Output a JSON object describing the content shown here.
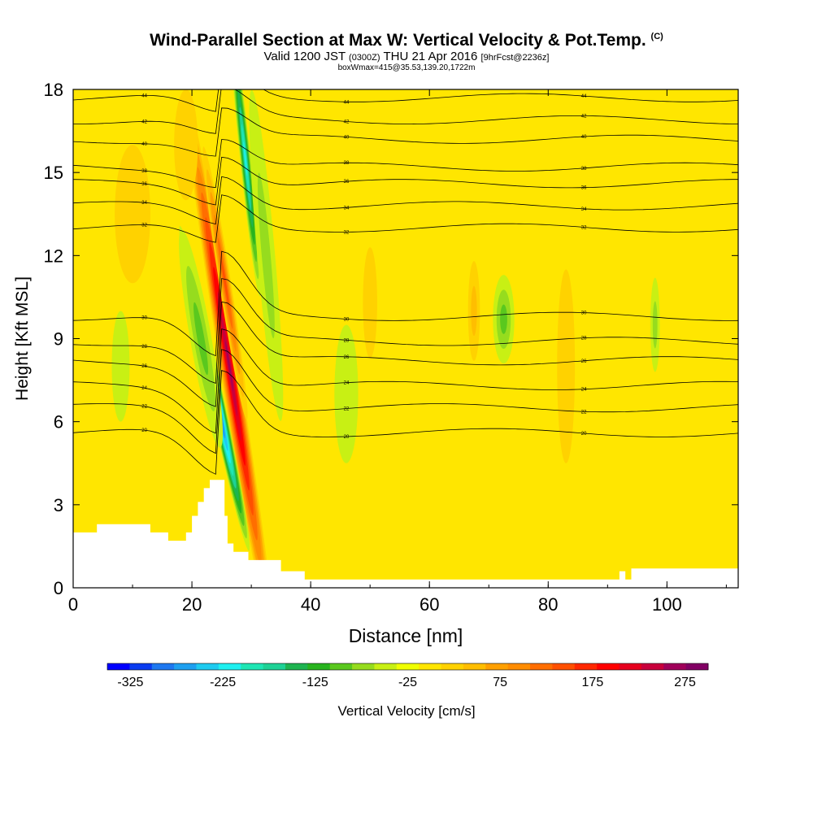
{
  "header": {
    "title": "Wind-Parallel Section at Max W: Vertical Velocity & Pot.Temp.",
    "copyright": "(C)",
    "valid_prefix": "Valid 1200 JST",
    "utc_time": "(0300Z)",
    "valid_date": "THU 21 Apr 2016",
    "forecast": "[9hrFcst@2236z]",
    "subtitle2": "boxWmax=415@35.53,139.20,1722m"
  },
  "chart_data": {
    "type": "heatmap",
    "title": "Wind-Parallel Section at Max W: Vertical Velocity & Pot.Temp.",
    "xlabel": "Distance [nm]",
    "ylabel": "Height [Kft MSL]",
    "xlim": [
      0,
      112
    ],
    "ylim": [
      0,
      18
    ],
    "x_ticks": [
      0,
      20,
      40,
      60,
      80,
      100
    ],
    "y_ticks": [
      0,
      3,
      6,
      9,
      12,
      15,
      18
    ],
    "colorbar": {
      "label": "Vertical Velocity [cm/s]",
      "ticks": [
        -325,
        -225,
        -125,
        -25,
        75,
        175,
        275
      ],
      "min": -350,
      "max": 300,
      "step": 25,
      "colors": [
        "#0000ff",
        "#0a3cf0",
        "#1e78f0",
        "#1ea0f0",
        "#1ecbf0",
        "#1ef0f0",
        "#1ee6b4",
        "#1ed296",
        "#1eb450",
        "#28b41e",
        "#5ac81e",
        "#96dc1e",
        "#c8f014",
        "#f0ff00",
        "#ffe600",
        "#ffd200",
        "#ffbe00",
        "#ffa000",
        "#ff8c00",
        "#ff6e00",
        "#ff5000",
        "#ff2800",
        "#ff0000",
        "#e6001e",
        "#c8003c",
        "#a0005a",
        "#820064"
      ]
    },
    "terrain_kft": [
      [
        0,
        2.0
      ],
      [
        4,
        2.0
      ],
      [
        4,
        2.3
      ],
      [
        13,
        2.3
      ],
      [
        13,
        2.0
      ],
      [
        16,
        2.0
      ],
      [
        16,
        1.7
      ],
      [
        19,
        1.7
      ],
      [
        19,
        2.0
      ],
      [
        20,
        2.0
      ],
      [
        20,
        2.6
      ],
      [
        21,
        2.6
      ],
      [
        21,
        3.1
      ],
      [
        22,
        3.1
      ],
      [
        22,
        3.6
      ],
      [
        23,
        3.6
      ],
      [
        23,
        3.9
      ],
      [
        25.5,
        3.9
      ],
      [
        25.5,
        2.6
      ],
      [
        26,
        2.6
      ],
      [
        26,
        1.6
      ],
      [
        27,
        1.6
      ],
      [
        27,
        1.3
      ],
      [
        29.5,
        1.3
      ],
      [
        29.5,
        1.0
      ],
      [
        35,
        1.0
      ],
      [
        35,
        0.6
      ],
      [
        39,
        0.6
      ],
      [
        39,
        0.3
      ],
      [
        92,
        0.3
      ],
      [
        92,
        0.6
      ],
      [
        93,
        0.6
      ],
      [
        93,
        0.3
      ],
      [
        94,
        0.3
      ],
      [
        94,
        0.7
      ],
      [
        112,
        0.7
      ]
    ],
    "w_features": [
      {
        "x": 26.3,
        "y": 8.0,
        "w": 290,
        "rx": 1.6,
        "ry": 10,
        "angle": -9
      },
      {
        "x": 25.6,
        "y": 11.0,
        "w": 150,
        "rx": 1.0,
        "ry": 5,
        "angle": -9
      },
      {
        "x": 23.8,
        "y": 7.2,
        "w": -330,
        "rx": 1.2,
        "ry": 6,
        "angle": -12
      },
      {
        "x": 29.0,
        "y": 15.5,
        "w": -200,
        "rx": 0.9,
        "ry": 5,
        "angle": -6
      },
      {
        "x": 21.5,
        "y": 9.0,
        "w": -80,
        "rx": 1.8,
        "ry": 4,
        "angle": -10
      },
      {
        "x": 32.5,
        "y": 12.0,
        "w": -60,
        "rx": 1.5,
        "ry": 6,
        "angle": -5
      },
      {
        "x": 72.5,
        "y": 9.7,
        "w": -90,
        "rx": 1.8,
        "ry": 1.6,
        "angle": 0
      },
      {
        "x": 67.5,
        "y": 10.0,
        "w": 60,
        "rx": 1.0,
        "ry": 1.8,
        "angle": 0
      },
      {
        "x": 98.0,
        "y": 9.5,
        "w": -55,
        "rx": 0.8,
        "ry": 1.7,
        "angle": 0
      },
      {
        "x": 83.0,
        "y": 8.0,
        "w": 45,
        "rx": 1.5,
        "ry": 3.5,
        "angle": 0
      },
      {
        "x": 10.0,
        "y": 13.5,
        "w": 35,
        "rx": 3.0,
        "ry": 2.5,
        "angle": 0
      },
      {
        "x": 19.0,
        "y": 16.0,
        "w": 45,
        "rx": 2.0,
        "ry": 2.0,
        "angle": 0
      },
      {
        "x": 50.0,
        "y": 10.3,
        "w": 40,
        "rx": 1.2,
        "ry": 2.0,
        "angle": 0
      },
      {
        "x": 46.0,
        "y": 7.0,
        "w": -35,
        "rx": 2.0,
        "ry": 2.5,
        "angle": 0
      },
      {
        "x": 8.0,
        "y": 8.0,
        "w": -30,
        "rx": 1.5,
        "ry": 2.0,
        "angle": 0
      }
    ],
    "theta_contours": [
      {
        "label": "20",
        "base": 5.6
      },
      {
        "label": "22",
        "base": 6.5
      },
      {
        "label": "24",
        "base": 7.3
      },
      {
        "label": "26",
        "base": 8.2
      },
      {
        "label": "28",
        "base": 8.9
      },
      {
        "label": "30",
        "base": 9.8
      },
      {
        "label": "32",
        "base": 13.0
      },
      {
        "label": "34",
        "base": 13.8
      },
      {
        "label": "36",
        "base": 14.6
      },
      {
        "label": "38",
        "base": 15.2
      },
      {
        "label": "40",
        "base": 16.2
      },
      {
        "label": "42",
        "base": 16.9
      },
      {
        "label": "44",
        "base": 17.7
      }
    ]
  }
}
